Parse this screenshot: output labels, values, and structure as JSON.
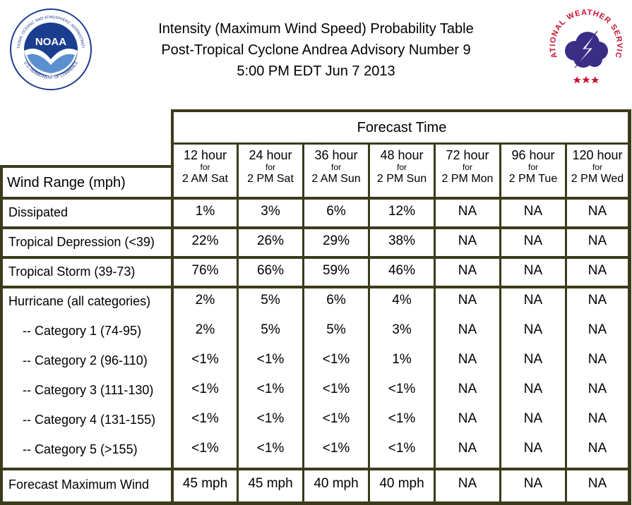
{
  "header": {
    "line1": "Intensity (Maximum Wind Speed) Probability Table",
    "line2": "Post-Tropical Cyclone Andrea Advisory Number 9",
    "line3": "5:00 PM EDT Jun 7 2013"
  },
  "logos": {
    "noaa": {
      "text": "NOAA",
      "ring_top": "NATIONAL OCEANIC AND ATMOSPHERIC ADMINISTRATION",
      "ring_bottom": "U.S. DEPARTMENT OF COMMERCE"
    },
    "nws": {
      "text": "NATIONAL WEATHER SERVICE"
    }
  },
  "table": {
    "forecast_time_label": "Forecast Time",
    "wind_range_label": "Wind Range (mph)",
    "columns": [
      {
        "hour": "12 hour",
        "for": "for",
        "when": "2 AM Sat"
      },
      {
        "hour": "24 hour",
        "for": "for",
        "when": "2 PM Sat"
      },
      {
        "hour": "36 hour",
        "for": "for",
        "when": "2 AM Sun"
      },
      {
        "hour": "48 hour",
        "for": "for",
        "when": "2 PM Sun"
      },
      {
        "hour": "72 hour",
        "for": "for",
        "when": "2 PM Mon"
      },
      {
        "hour": "96 hour",
        "for": "for",
        "when": "2 PM Tue"
      },
      {
        "hour": "120 hour",
        "for": "for",
        "when": "2 PM Wed"
      }
    ],
    "rows": [
      {
        "label": "Dissipated",
        "values": [
          "1%",
          "3%",
          "6%",
          "12%",
          "NA",
          "NA",
          "NA"
        ]
      },
      {
        "label": "Tropical Depression (<39)",
        "values": [
          "22%",
          "26%",
          "29%",
          "38%",
          "NA",
          "NA",
          "NA"
        ]
      },
      {
        "label": "Tropical Storm (39-73)",
        "values": [
          "76%",
          "66%",
          "59%",
          "46%",
          "NA",
          "NA",
          "NA"
        ]
      },
      {
        "label": "Hurricane (all categories)",
        "values": [
          "2%",
          "5%",
          "6%",
          "4%",
          "NA",
          "NA",
          "NA"
        ]
      },
      {
        "label": "-- Category 1 (74-95)",
        "values": [
          "2%",
          "5%",
          "5%",
          "3%",
          "NA",
          "NA",
          "NA"
        ]
      },
      {
        "label": "-- Category 2 (96-110)",
        "values": [
          "<1%",
          "<1%",
          "<1%",
          "1%",
          "NA",
          "NA",
          "NA"
        ]
      },
      {
        "label": "-- Category 3 (111-130)",
        "values": [
          "<1%",
          "<1%",
          "<1%",
          "<1%",
          "NA",
          "NA",
          "NA"
        ]
      },
      {
        "label": "-- Category 4 (131-155)",
        "values": [
          "<1%",
          "<1%",
          "<1%",
          "<1%",
          "NA",
          "NA",
          "NA"
        ]
      },
      {
        "label": "-- Category 5 (>155)",
        "values": [
          "<1%",
          "<1%",
          "<1%",
          "<1%",
          "NA",
          "NA",
          "NA"
        ]
      },
      {
        "label": "Forecast Maximum Wind",
        "values": [
          "45 mph",
          "45 mph",
          "40 mph",
          "40 mph",
          "NA",
          "NA",
          "NA"
        ]
      }
    ]
  },
  "colors": {
    "border": "#3b3b1c",
    "noaa_blue": "#1b3d8f",
    "nws_red": "#c8102e"
  }
}
